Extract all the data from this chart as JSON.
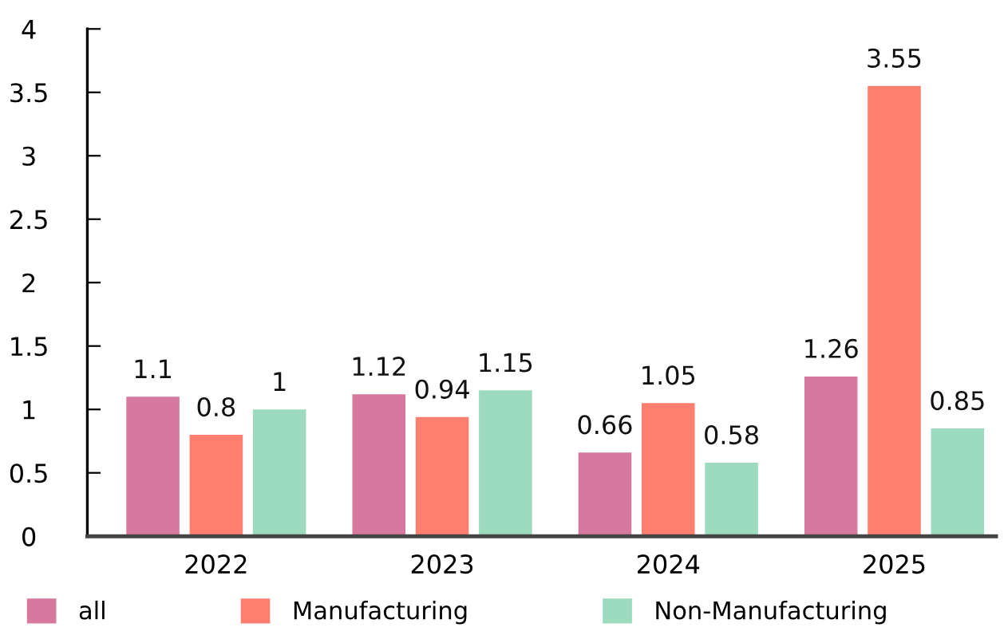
{
  "chart_data": {
    "type": "bar",
    "categories": [
      "2022",
      "2023",
      "2024",
      "2025"
    ],
    "series": [
      {
        "name": "all",
        "color": "#d7789f",
        "values": [
          1.1,
          1.12,
          0.66,
          1.26
        ]
      },
      {
        "name": "Manufacturing",
        "color": "#fe7f6f",
        "values": [
          0.8,
          0.94,
          1.05,
          3.55
        ]
      },
      {
        "name": "Non-Manufacturing",
        "color": "#9cdbbd",
        "values": [
          1,
          1.15,
          0.58,
          0.85
        ]
      }
    ],
    "ylim": [
      0,
      4
    ],
    "yticks": [
      0,
      0.5,
      1,
      1.5,
      2,
      2.5,
      3,
      3.5,
      4
    ],
    "data_labels": true,
    "legend": "bottom"
  }
}
